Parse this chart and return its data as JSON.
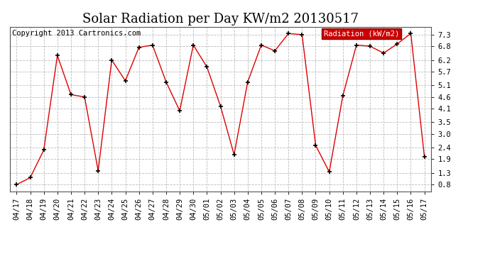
{
  "title": "Solar Radiation per Day KW/m2 20130517",
  "copyright_text": "Copyright 2013 Cartronics.com",
  "legend_label": "Radiation (kW/m2)",
  "dates": [
    "04/17",
    "04/18",
    "04/19",
    "04/20",
    "04/21",
    "04/22",
    "04/23",
    "04/24",
    "04/25",
    "04/26",
    "04/27",
    "04/28",
    "04/29",
    "04/30",
    "05/01",
    "05/02",
    "05/03",
    "05/04",
    "05/05",
    "05/06",
    "05/07",
    "05/08",
    "05/09",
    "05/10",
    "05/11",
    "05/12",
    "05/13",
    "05/14",
    "05/15",
    "05/16",
    "05/17"
  ],
  "values": [
    0.8,
    1.1,
    2.3,
    6.4,
    4.7,
    4.6,
    1.4,
    6.2,
    5.3,
    6.75,
    6.85,
    5.25,
    4.0,
    6.85,
    5.9,
    4.2,
    2.1,
    5.25,
    6.85,
    6.6,
    7.35,
    7.3,
    2.5,
    1.35,
    4.65,
    6.85,
    6.8,
    6.5,
    6.9,
    7.35,
    2.0
  ],
  "yticks": [
    0.8,
    1.3,
    1.9,
    2.4,
    3.0,
    3.5,
    4.1,
    4.6,
    5.1,
    5.7,
    6.2,
    6.8,
    7.3
  ],
  "ylim": [
    0.5,
    7.65
  ],
  "line_color": "#dd0000",
  "marker_color": "#000000",
  "bg_color": "#ffffff",
  "plot_bg_color": "#ffffff",
  "grid_color": "#bbbbbb",
  "legend_bg": "#cc0000",
  "legend_text_color": "#ffffff",
  "title_fontsize": 13,
  "tick_fontsize": 7.5,
  "copyright_fontsize": 7.5
}
